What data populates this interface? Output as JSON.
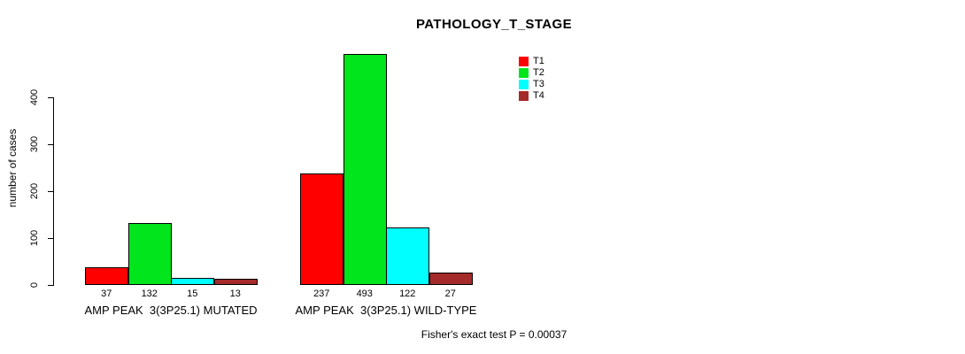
{
  "title": "PATHOLOGY_T_STAGE",
  "y_axis": {
    "label": "number of cases",
    "ticks": [
      0,
      100,
      200,
      300,
      400
    ]
  },
  "footer": "Fisher's exact test P = 0.00037",
  "chart_data": {
    "type": "bar",
    "title": "PATHOLOGY_T_STAGE",
    "xlabel": "",
    "ylabel": "number of cases",
    "ylim": [
      0,
      495
    ],
    "y_ticks": [
      0,
      100,
      200,
      300,
      400
    ],
    "grid": false,
    "legend_position": "top-right",
    "categories": [
      "AMP PEAK  3(3P25.1) MUTATED",
      "AMP PEAK  3(3P25.1) WILD-TYPE"
    ],
    "series": [
      {
        "name": "T1",
        "color": "#ff0000",
        "values": [
          37,
          237
        ]
      },
      {
        "name": "T2",
        "color": "#00e51b",
        "values": [
          132,
          493
        ]
      },
      {
        "name": "T3",
        "color": "#00ffff",
        "values": [
          15,
          122
        ]
      },
      {
        "name": "T4",
        "color": "#a52a2a",
        "values": [
          13,
          27
        ]
      }
    ],
    "bar_value_labels": [
      [
        37,
        132,
        15,
        13
      ],
      [
        237,
        493,
        122,
        27
      ]
    ],
    "annotation": "Fisher's exact test P = 0.00037"
  }
}
